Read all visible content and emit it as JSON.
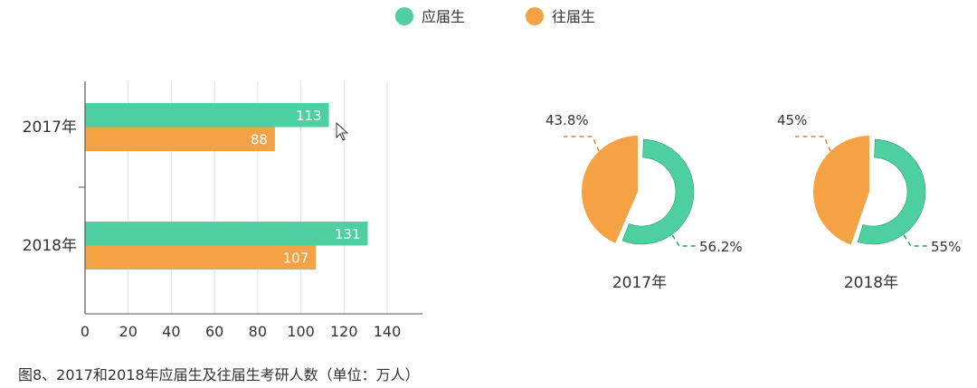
{
  "legend": [
    {
      "name": "应届生",
      "color": "#4ecf9f"
    },
    {
      "name": "往届生",
      "color": "#f5a244"
    }
  ],
  "chart_data": [
    {
      "type": "bar",
      "orientation": "horizontal",
      "categories": [
        "2017年",
        "2018年"
      ],
      "series": [
        {
          "name": "应届生",
          "values": [
            113,
            131
          ],
          "color": "#4ecf9f"
        },
        {
          "name": "往届生",
          "values": [
            88,
            107
          ],
          "color": "#f5a244"
        }
      ],
      "xlim": [
        0,
        140
      ],
      "xticks": [
        0,
        20,
        40,
        60,
        80,
        100,
        120,
        140
      ],
      "grid": true
    },
    {
      "type": "pie",
      "title": "2017年",
      "slices": [
        {
          "name": "应届生",
          "value": 56.2,
          "label": "56.2%",
          "color": "#4ecf9f"
        },
        {
          "name": "往届生",
          "value": 43.8,
          "label": "43.8%",
          "color": "#f5a244"
        }
      ]
    },
    {
      "type": "pie",
      "title": "2018年",
      "slices": [
        {
          "name": "应届生",
          "value": 55,
          "label": "55%",
          "color": "#4ecf9f"
        },
        {
          "name": "往届生",
          "value": 45,
          "label": "45%",
          "color": "#f5a244"
        }
      ]
    }
  ],
  "caption": "图8、2017和2018年应届生及往届生考研人数（单位：万人）"
}
